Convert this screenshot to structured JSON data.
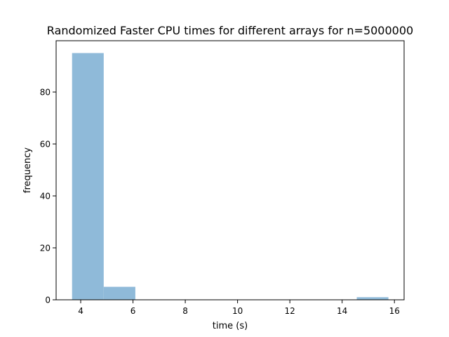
{
  "chart_data": {
    "type": "bar",
    "title": "Randomized Faster CPU times for different arrays for n=5000000",
    "xlabel": "time (s)",
    "ylabel": "frequency",
    "bins": [
      {
        "start": 3.67,
        "end": 4.88,
        "value": 95
      },
      {
        "start": 4.88,
        "end": 6.09,
        "value": 5
      },
      {
        "start": 6.09,
        "end": 7.3,
        "value": 0
      },
      {
        "start": 7.3,
        "end": 8.51,
        "value": 0
      },
      {
        "start": 8.51,
        "end": 9.72,
        "value": 0
      },
      {
        "start": 9.72,
        "end": 10.93,
        "value": 0
      },
      {
        "start": 10.93,
        "end": 12.14,
        "value": 0
      },
      {
        "start": 12.14,
        "end": 13.35,
        "value": 0
      },
      {
        "start": 13.35,
        "end": 14.56,
        "value": 0
      },
      {
        "start": 14.56,
        "end": 15.77,
        "value": 1
      }
    ],
    "xlim": [
      3.06,
      16.37
    ],
    "ylim": [
      0,
      99.75
    ],
    "xticks": [
      4,
      6,
      8,
      10,
      12,
      14,
      16
    ],
    "yticks": [
      0,
      20,
      40,
      60,
      80
    ],
    "bar_color": "#8fbad9",
    "grid": false,
    "legend": "none"
  }
}
